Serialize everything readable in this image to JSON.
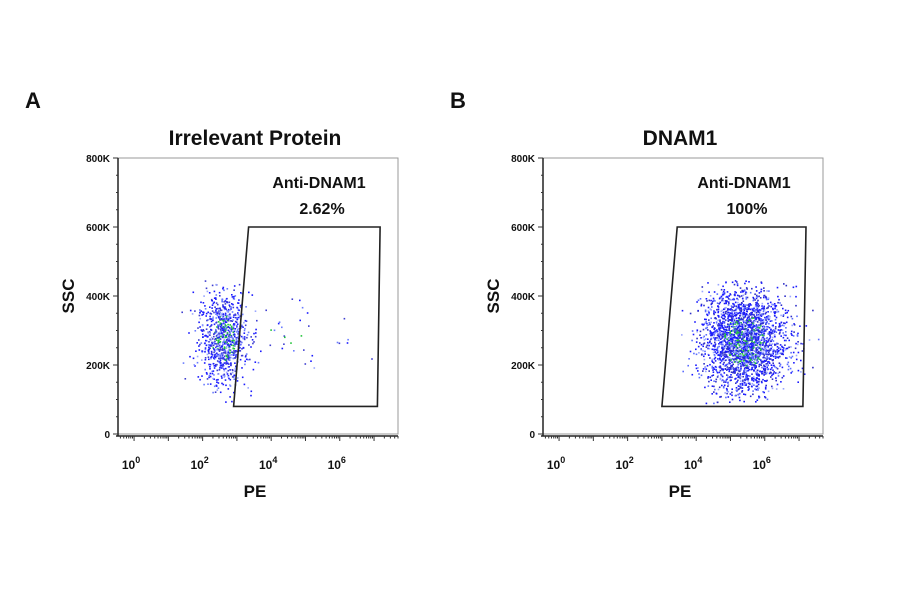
{
  "chart_data": [
    {
      "type": "scatter",
      "panel_label": "A",
      "title": "Irrelevant Protein",
      "xlabel": "PE",
      "ylabel": "SSC",
      "xscale": "log",
      "xlim": [
        0.34,
        50000000
      ],
      "ylim": [
        0,
        800000
      ],
      "xticks": [
        {
          "base": "10",
          "exp": "0"
        },
        {
          "base": "10",
          "exp": "2"
        },
        {
          "base": "10",
          "exp": "4"
        },
        {
          "base": "10",
          "exp": "6"
        }
      ],
      "yticks": [
        "0",
        "200K",
        "400K",
        "600K",
        "800K"
      ],
      "ytick_values": [
        0,
        200000,
        400000,
        600000,
        800000
      ],
      "xtick_values": [
        1,
        100,
        10000,
        1000000
      ],
      "gate": {
        "name": "Anti-DNAM1",
        "percent": "2.62%",
        "vertices": [
          [
            2200,
            600000
          ],
          [
            15000000,
            600000
          ],
          [
            12500000,
            80000
          ],
          [
            800,
            80000
          ]
        ]
      },
      "populations": [
        {
          "pe_log10_mean": 2.6,
          "pe_log10_sd": 0.35,
          "ssc_mean": 280000,
          "ssc_sd": 65000,
          "count": 900
        },
        {
          "pe_log10_mean": 4.6,
          "pe_log10_sd": 1.0,
          "ssc_mean": 280000,
          "ssc_sd": 60000,
          "count": 35
        }
      ],
      "point_colors": [
        "#1a1aff",
        "#3f3fd0",
        "#6a7cff",
        "#9aa6ff",
        "#22c43a"
      ]
    },
    {
      "type": "scatter",
      "panel_label": "B",
      "title": "DNAM1",
      "xlabel": "PE",
      "ylabel": "SSC",
      "xscale": "log",
      "xlim": [
        0.34,
        50000000
      ],
      "ylim": [
        0,
        800000
      ],
      "xticks": [
        {
          "base": "10",
          "exp": "0"
        },
        {
          "base": "10",
          "exp": "2"
        },
        {
          "base": "10",
          "exp": "4"
        },
        {
          "base": "10",
          "exp": "6"
        }
      ],
      "yticks": [
        "0",
        "200K",
        "400K",
        "600K",
        "800K"
      ],
      "ytick_values": [
        0,
        200000,
        400000,
        600000,
        800000
      ],
      "xtick_values": [
        1,
        100,
        10000,
        1000000
      ],
      "gate": {
        "name": "Anti-DNAM1",
        "percent": "100%",
        "vertices": [
          [
            2800,
            600000
          ],
          [
            16000000,
            600000
          ],
          [
            13000000,
            80000
          ],
          [
            1000,
            80000
          ]
        ]
      },
      "populations": [
        {
          "pe_log10_mean": 5.4,
          "pe_log10_sd": 0.6,
          "ssc_mean": 270000,
          "ssc_sd": 75000,
          "count": 2400
        }
      ],
      "point_colors": [
        "#1a1aff",
        "#3030c8",
        "#5a6cff",
        "#9aa6ff",
        "#22c43a"
      ]
    }
  ]
}
